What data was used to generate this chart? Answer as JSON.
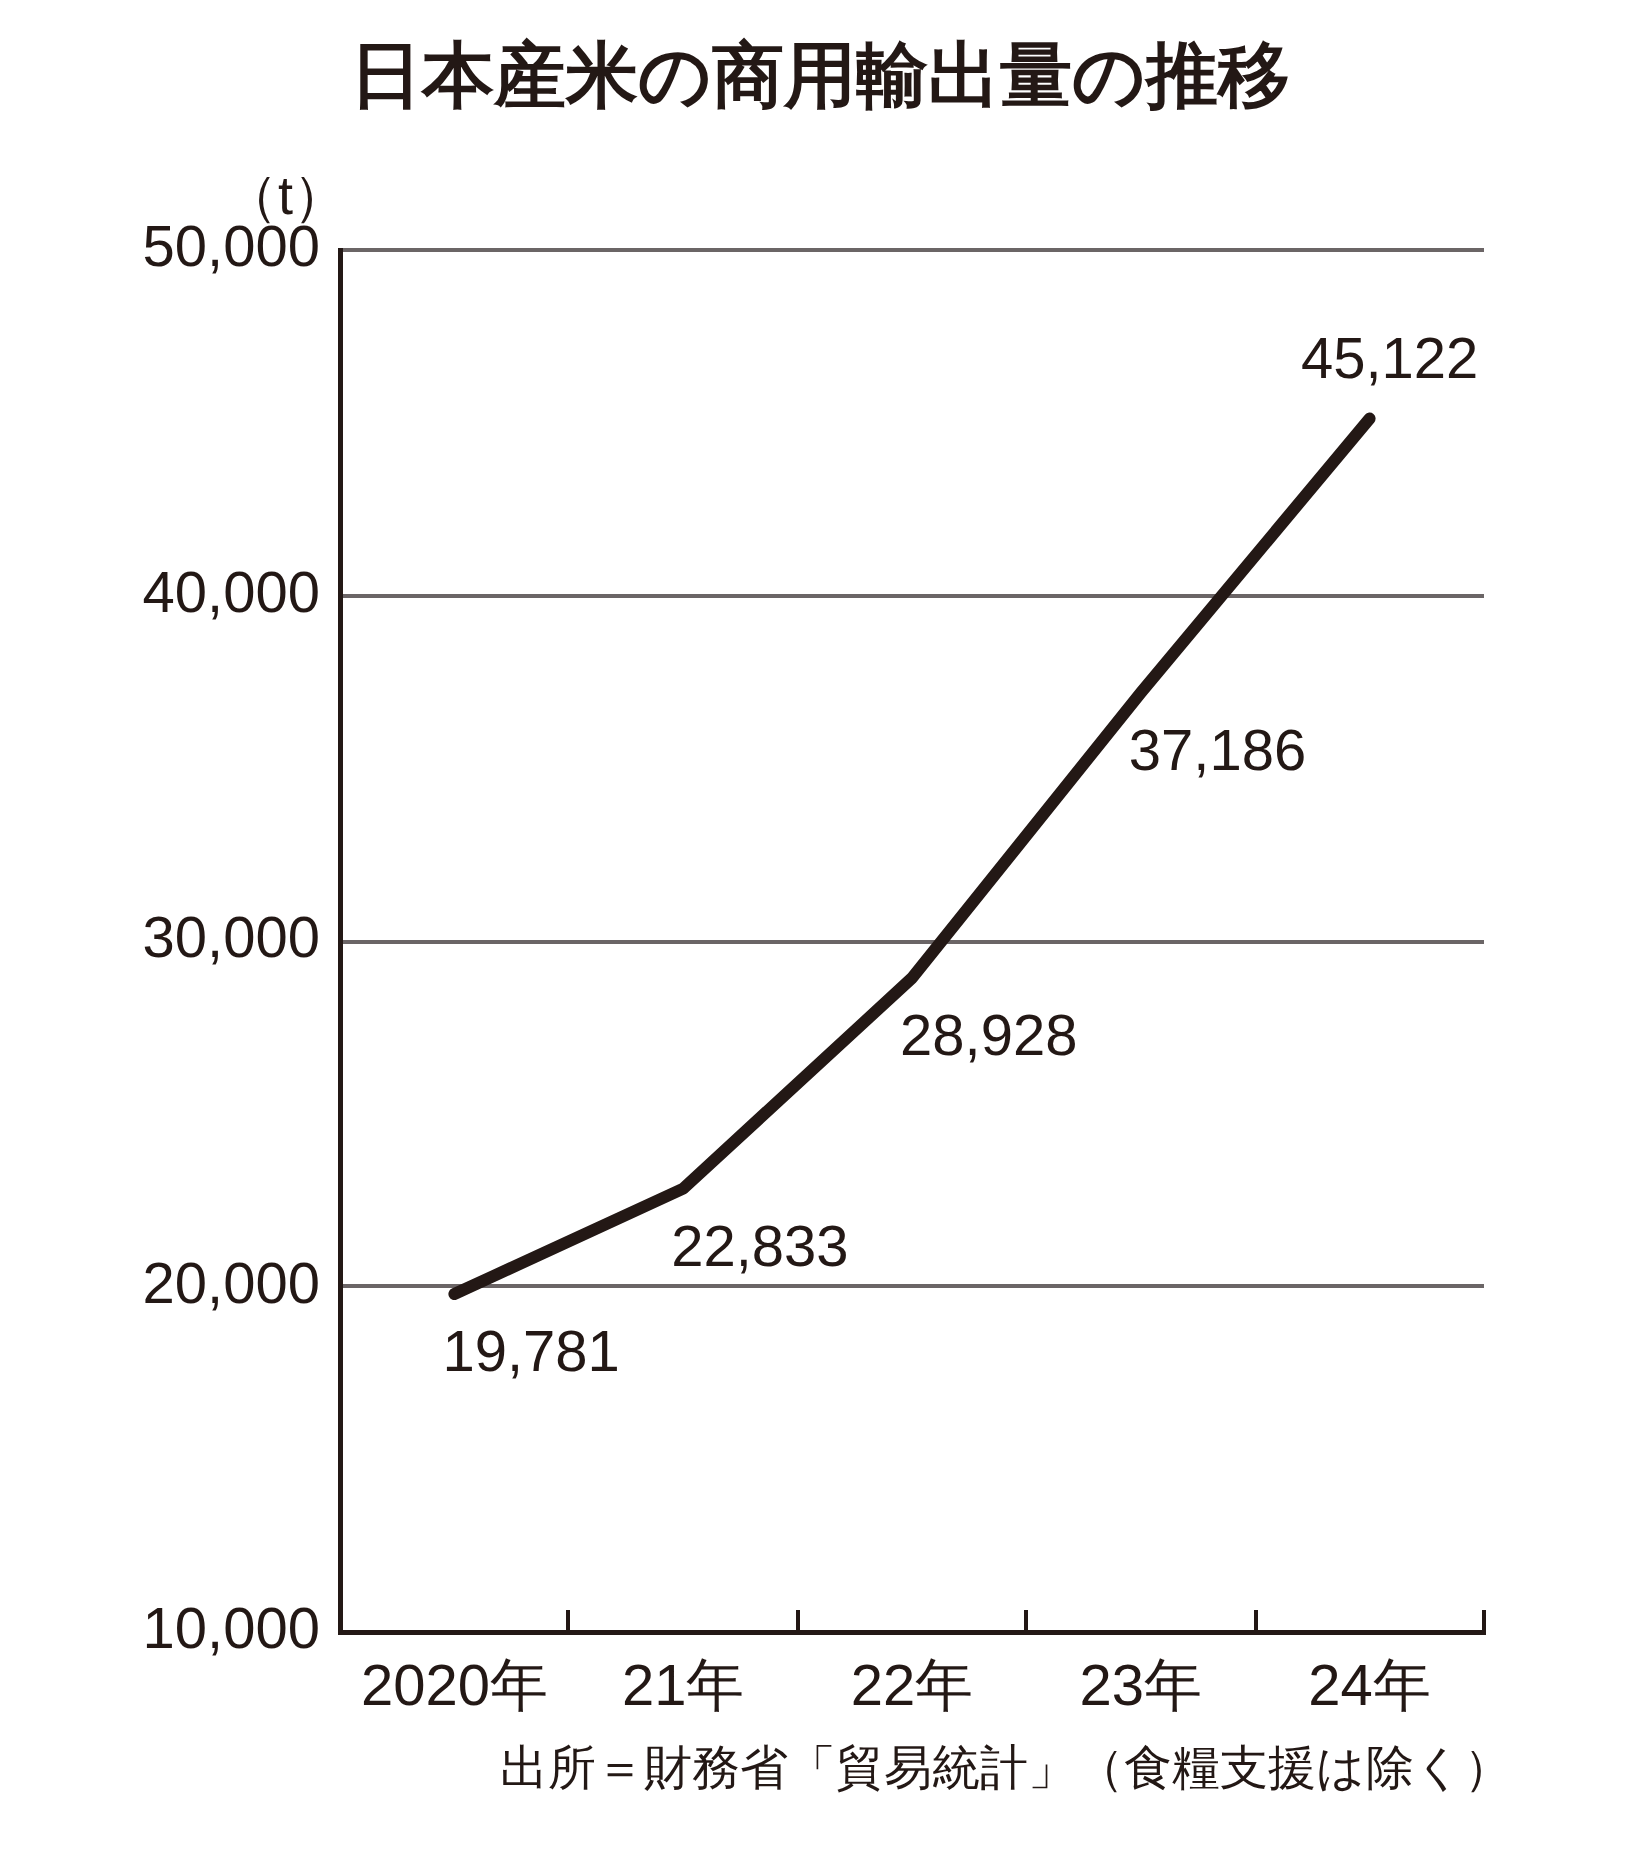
{
  "chart_data": {
    "type": "line",
    "title": "日本産米の商用輸出量の推移",
    "ylabel": "（t）",
    "annotations": [
      "出所＝財務省「貿易統計」（食糧支援は除く）"
    ],
    "categories": [
      "2020年",
      "21年",
      "22年",
      "23年",
      "24年"
    ],
    "values": [
      19781,
      22833,
      28928,
      37186,
      45122
    ],
    "color": "#231815",
    "value_labels": [
      "19,781",
      "22,833",
      "28,928",
      "37,186",
      "45,122"
    ],
    "ylim": [
      10000,
      50000
    ],
    "yticks": [
      {
        "value": 10000,
        "label": "10,000"
      },
      {
        "value": 20000,
        "label": "20,000"
      },
      {
        "value": 30000,
        "label": "30,000"
      },
      {
        "value": 40000,
        "label": "40,000"
      },
      {
        "value": 50000,
        "label": "50,000"
      }
    ],
    "grid": "y",
    "marker": "none",
    "line_style": "solid"
  }
}
